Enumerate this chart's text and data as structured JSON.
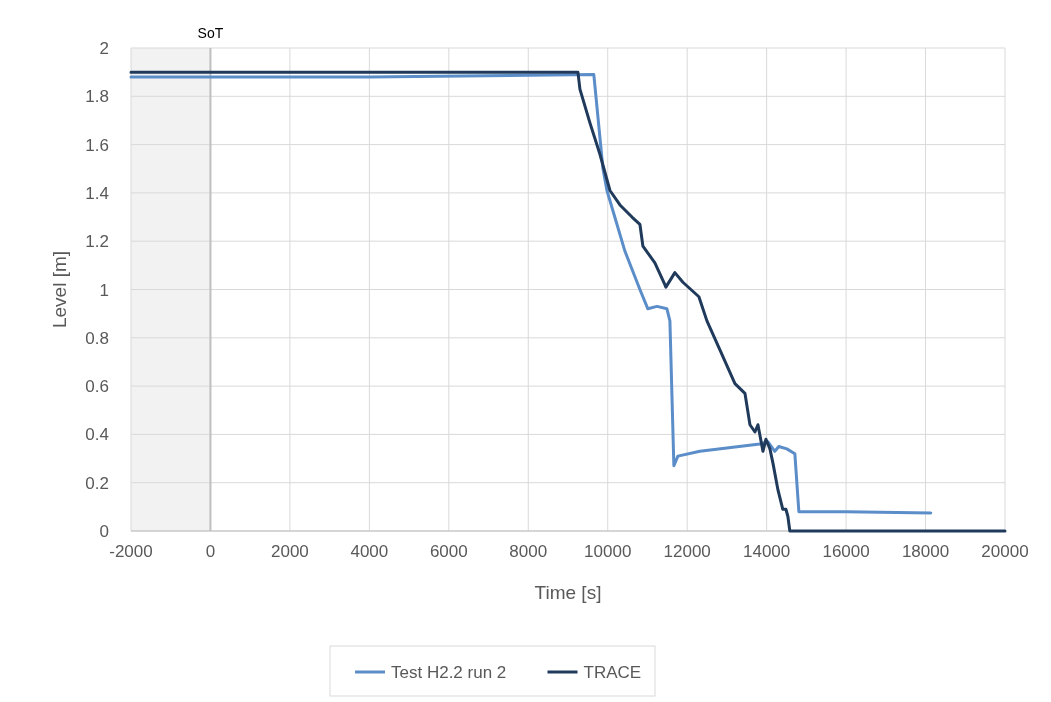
{
  "chart_data": {
    "type": "line",
    "xlabel": "Time [s]",
    "ylabel": "Level [m]",
    "xlim": [
      -2000,
      20000
    ],
    "xticks": [
      -2000,
      0,
      2000,
      4000,
      6000,
      8000,
      10000,
      12000,
      14000,
      16000,
      18000,
      20000
    ],
    "ylim": [
      0,
      2
    ],
    "yticks": [
      0,
      0.2,
      0.4,
      0.6,
      0.8,
      1,
      1.2,
      1.4,
      1.6,
      1.8,
      2
    ],
    "grid": true,
    "legend": "bottom",
    "marker": "none",
    "line_style": "solid",
    "ref_lines": [
      {
        "axis": "x",
        "value": 0,
        "label": "SoT",
        "color": "#bfbfbf"
      }
    ],
    "bands": [
      {
        "axis": "x",
        "from": -2000,
        "to": 0,
        "color": "#f2f2f2"
      }
    ],
    "series": [
      {
        "name": "Test H2.2 run 2",
        "color": "#5b8dc9",
        "x": [
          -2000,
          0,
          4000,
          9650,
          9880,
          9980,
          10430,
          10810,
          11010,
          11240,
          11490,
          11565,
          11665,
          11766,
          12320,
          13830,
          14030,
          14206,
          14307,
          14509,
          14710,
          14811,
          16000,
          18130
        ],
        "values": [
          1.88,
          1.88,
          1.88,
          1.89,
          1.5,
          1.41,
          1.16,
          1.0,
          0.92,
          0.93,
          0.92,
          0.87,
          0.27,
          0.31,
          0.33,
          0.36,
          0.37,
          0.33,
          0.35,
          0.34,
          0.32,
          0.08,
          0.08,
          0.075
        ]
      },
      {
        "name": "TRACE",
        "color": "#203a5c",
        "x": [
          -2000,
          9250,
          9300,
          9552,
          9804,
          10056,
          10308,
          10610,
          10810,
          10885,
          11187,
          11438,
          11464,
          11690,
          11892,
          12295,
          12497,
          12824,
          13202,
          13454,
          13580,
          13706,
          13781,
          13907,
          13983,
          14083,
          14160,
          14285,
          14407,
          14485,
          14535,
          14584,
          20000
        ],
        "values": [
          1.9,
          1.9,
          1.83,
          1.69,
          1.56,
          1.41,
          1.35,
          1.3,
          1.27,
          1.18,
          1.11,
          1.02,
          1.01,
          1.07,
          1.03,
          0.97,
          0.87,
          0.75,
          0.61,
          0.57,
          0.44,
          0.41,
          0.44,
          0.33,
          0.38,
          0.34,
          0.28,
          0.17,
          0.09,
          0.09,
          0.06,
          0,
          0
        ]
      }
    ]
  }
}
